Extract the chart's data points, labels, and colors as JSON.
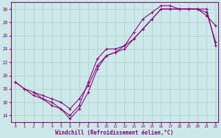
{
  "xlabel": "Windchill (Refroidissement éolien,°C)",
  "xlim": [
    -0.5,
    22.3
  ],
  "ylim": [
    13.0,
    31.0
  ],
  "xticks": [
    0,
    1,
    2,
    3,
    4,
    5,
    6,
    7,
    8,
    9,
    10,
    11,
    12,
    13,
    14,
    15,
    16,
    17,
    18,
    19,
    20,
    21,
    22
  ],
  "yticks": [
    14,
    16,
    18,
    20,
    22,
    24,
    26,
    28,
    30
  ],
  "background_color": "#cce8e8",
  "line_color": "#880077",
  "grid_color": "#aacccc",
  "line1_x": [
    0,
    1,
    2,
    3,
    4,
    5,
    6,
    7,
    8,
    9,
    10,
    11,
    12,
    13,
    14,
    15,
    16,
    17,
    18,
    19,
    20,
    21,
    22
  ],
  "line1_y": [
    19.0,
    18.0,
    17.5,
    17.0,
    16.5,
    16.0,
    15.0,
    16.5,
    18.5,
    21.5,
    23.0,
    23.5,
    24.0,
    25.5,
    27.0,
    28.5,
    30.0,
    30.0,
    30.0,
    30.0,
    30.0,
    30.0,
    24.5
  ],
  "line2_x": [
    0,
    1,
    2,
    3,
    4,
    5,
    6,
    7,
    8,
    9,
    10,
    11,
    12,
    13,
    14,
    15,
    16,
    17,
    18,
    19,
    20,
    21,
    22
  ],
  "line2_y": [
    19.0,
    18.0,
    17.0,
    16.5,
    15.5,
    15.0,
    13.5,
    15.0,
    17.5,
    21.0,
    23.0,
    23.5,
    24.5,
    26.5,
    28.5,
    29.5,
    30.5,
    30.5,
    30.0,
    30.0,
    30.0,
    29.5,
    25.0
  ],
  "line3_x": [
    2,
    3,
    4,
    5,
    6,
    7,
    8,
    9,
    10,
    11,
    12,
    13,
    14,
    15,
    16,
    17,
    18,
    19,
    20,
    21,
    22
  ],
  "line3_y": [
    17.5,
    16.5,
    16.0,
    15.0,
    14.0,
    15.5,
    19.0,
    22.5,
    24.0,
    24.0,
    24.5,
    25.5,
    27.0,
    28.5,
    30.0,
    30.0,
    30.0,
    30.0,
    30.0,
    29.0,
    27.5
  ]
}
